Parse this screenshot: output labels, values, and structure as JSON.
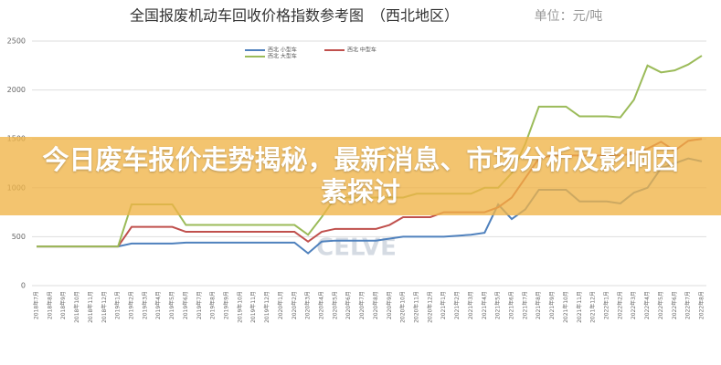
{
  "chart_data": {
    "type": "line",
    "title": "全国报废机动车回收价格指数参考图　（西北地区）",
    "unit_label": "单位：元/吨",
    "categories": [
      "2018年7月",
      "2018年8月",
      "2018年9月",
      "2018年10月",
      "2018年11月",
      "2018年12月",
      "2019年1月",
      "2019年2月",
      "2019年3月",
      "2019年4月",
      "2019年5月",
      "2019年6月",
      "2019年7月",
      "2019年8月",
      "2019年9月",
      "2019年10月",
      "2019年11月",
      "2019年12月",
      "2020年1月",
      "2020年2月",
      "2020年3月",
      "2020年4月",
      "2020年5月",
      "2020年6月",
      "2020年7月",
      "2020年8月",
      "2020年9月",
      "2020年10月",
      "2020年11月",
      "2020年12月",
      "2021年1月",
      "2021年2月",
      "2021年3月",
      "2021年4月",
      "2021年5月",
      "2021年6月",
      "2021年7月",
      "2021年8月",
      "2021年9月",
      "2021年10月",
      "2021年11月",
      "2021年12月",
      "2022年1月",
      "2022年2月",
      "2022年3月",
      "2022年4月",
      "2022年5月",
      "2022年6月",
      "2022年7月",
      "2022年8月"
    ],
    "series": [
      {
        "name": "西北 小型车",
        "color": "#4f81bd",
        "values": [
          400,
          400,
          400,
          400,
          400,
          400,
          400,
          430,
          430,
          430,
          430,
          440,
          440,
          440,
          440,
          440,
          440,
          440,
          440,
          440,
          330,
          450,
          460,
          460,
          460,
          460,
          480,
          500,
          500,
          500,
          500,
          510,
          520,
          540,
          830,
          680,
          780,
          980,
          980,
          980,
          860,
          860,
          860,
          840,
          950,
          1000,
          1200,
          1250,
          1300,
          1270
        ]
      },
      {
        "name": "西北 中型车",
        "color": "#c0504d",
        "values": [
          400,
          400,
          400,
          400,
          400,
          400,
          400,
          600,
          600,
          600,
          600,
          550,
          550,
          550,
          550,
          550,
          550,
          550,
          550,
          550,
          450,
          550,
          580,
          580,
          580,
          580,
          620,
          700,
          700,
          700,
          750,
          750,
          750,
          750,
          800,
          900,
          1100,
          1300,
          1330,
          1330,
          1330,
          1330,
          1330,
          1330,
          1350,
          1400,
          1470,
          1380,
          1480,
          1500
        ]
      },
      {
        "name": "西北 大型车",
        "color": "#9bbb59",
        "values": [
          400,
          400,
          400,
          400,
          400,
          400,
          400,
          830,
          830,
          830,
          830,
          620,
          620,
          620,
          620,
          620,
          620,
          620,
          620,
          620,
          520,
          700,
          900,
          900,
          900,
          900,
          900,
          900,
          940,
          940,
          940,
          940,
          940,
          1000,
          1000,
          1150,
          1450,
          1830,
          1830,
          1830,
          1730,
          1730,
          1730,
          1720,
          1900,
          2250,
          2180,
          2200,
          2260,
          2350
        ]
      }
    ],
    "ylim": [
      0,
      2500
    ],
    "yticks": [
      0,
      500,
      1000,
      1500,
      2000,
      2500
    ],
    "grid": true,
    "watermark": "CELVE",
    "banner": "今日废车报价走势揭秘，最新消息、市场分析及影响因素探讨"
  }
}
